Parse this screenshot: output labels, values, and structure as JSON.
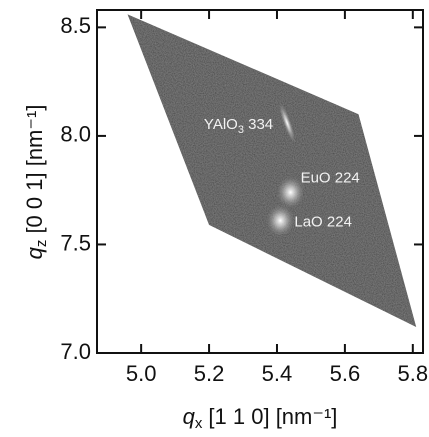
{
  "chart_data": {
    "type": "map",
    "xlabel": {
      "symbol": "q",
      "subscript": "x",
      "text": " [1 1 0] [nm⁻¹]"
    },
    "ylabel": {
      "symbol": "q",
      "subscript": "z",
      "text": " [0 0 1] [nm⁻¹]"
    },
    "xlim": [
      4.87,
      5.83
    ],
    "ylim": [
      7.0,
      8.58
    ],
    "xticks": [
      {
        "value": 5,
        "label": "5.0"
      },
      5.2,
      5.4,
      5.6,
      5.8
    ],
    "yticks": [
      {
        "value": 7,
        "label": "7.0"
      },
      7.5,
      {
        "value": 8,
        "label": "8.0"
      },
      8.5
    ],
    "region": {
      "x": [
        4.96,
        5.2,
        5.81,
        5.64
      ],
      "y": [
        8.56,
        7.59,
        7.12,
        8.1
      ],
      "color": "#3d3d3d"
    },
    "peaks": [
      {
        "label": {
          "text": "YAlO",
          "subscript": "3",
          "suffix": " 334"
        },
        "x": 5.43,
        "y": 8.06
      },
      {
        "label": {
          "text": "EuO 224"
        },
        "x": 5.44,
        "y": 7.74
      },
      {
        "label": {
          "text": "LaO 224"
        },
        "x": 5.41,
        "y": 7.61
      }
    ]
  }
}
